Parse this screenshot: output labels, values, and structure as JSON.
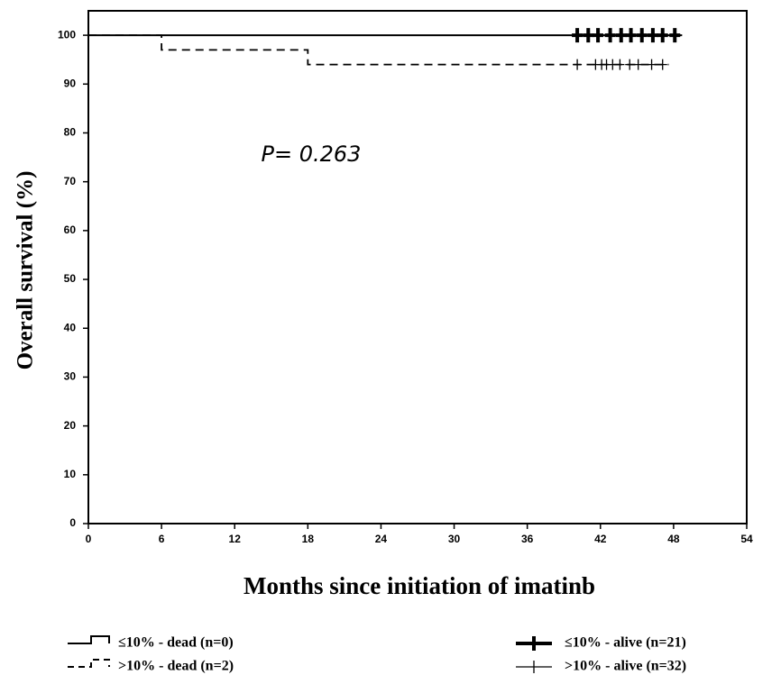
{
  "chart_data": {
    "type": "survival",
    "xlabel": "Months since initiation of imatinb",
    "ylabel": "Overall survival (%)",
    "annotation": "P= 0.263",
    "xlim": [
      0,
      54
    ],
    "xticks": [
      0,
      6,
      12,
      18,
      24,
      30,
      36,
      42,
      48,
      54
    ],
    "ylim": [
      0,
      105
    ],
    "yticks": [
      0,
      10,
      20,
      30,
      40,
      50,
      60,
      70,
      80,
      90,
      100
    ],
    "series": [
      {
        "name": "≤10% - dead (n=0)",
        "mark": "step",
        "style": "solid",
        "weight": "thick",
        "color": "#000000",
        "x": [
          0,
          48.7
        ],
        "values": [
          100,
          100
        ]
      },
      {
        "name": ">10% - dead (n=2)",
        "mark": "step",
        "style": "dashed",
        "weight": "thin",
        "color": "#000000",
        "x": [
          0,
          6,
          18,
          47.6
        ],
        "values": [
          100,
          97,
          94,
          94
        ]
      },
      {
        "name": "≤10% - alive (n=21)",
        "mark": "censor",
        "style": "solid",
        "weight": "thick",
        "color": "#000000",
        "x": [
          40.1,
          41.0,
          41.8,
          42.8,
          43.7,
          44.5,
          45.4,
          46.3,
          47.1,
          48.1
        ],
        "values": [
          100,
          100,
          100,
          100,
          100,
          100,
          100,
          100,
          100,
          100
        ]
      },
      {
        "name": ">10% - alive (n=32)",
        "mark": "censor",
        "style": "solid",
        "weight": "thin",
        "color": "#000000",
        "x": [
          40.1,
          41.6,
          42.1,
          42.5,
          43.0,
          43.6,
          44.4,
          45.1,
          46.2,
          47.1
        ],
        "values": [
          94,
          94,
          94,
          94,
          94,
          94,
          94,
          94,
          94,
          94
        ]
      }
    ]
  }
}
